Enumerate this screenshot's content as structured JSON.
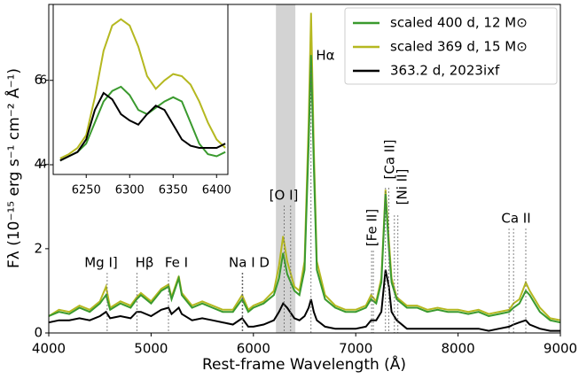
{
  "chart_data": [
    {
      "type": "line",
      "x_label": "Rest-frame Wavelength (Å)",
      "y_label": "Fλ (10⁻¹⁵ erg s⁻¹ cm⁻² Å⁻¹)",
      "xlim": [
        4000,
        9000
      ],
      "ylim": [
        0,
        7.8
      ],
      "xticks": [
        4000,
        5000,
        6000,
        7000,
        8000,
        9000
      ],
      "yticks": [
        0,
        2,
        4,
        6
      ],
      "legend": "upper right",
      "shaded_band": [
        6220,
        6410
      ],
      "x": [
        4000,
        4100,
        4200,
        4300,
        4400,
        4500,
        4560,
        4600,
        4700,
        4800,
        4860,
        4900,
        5000,
        5100,
        5170,
        5200,
        5270,
        5300,
        5400,
        5500,
        5600,
        5700,
        5800,
        5890,
        5950,
        6000,
        6100,
        6200,
        6250,
        6290,
        6330,
        6400,
        6450,
        6500,
        6540,
        6563,
        6590,
        6620,
        6700,
        6800,
        6900,
        7000,
        7100,
        7150,
        7200,
        7250,
        7291,
        7324,
        7350,
        7400,
        7500,
        7600,
        7700,
        7800,
        7900,
        8000,
        8100,
        8200,
        8300,
        8400,
        8500,
        8542,
        8600,
        8662,
        8700,
        8800,
        8900,
        9000
      ],
      "series": [
        {
          "name": "scaled 400 d, 12 M⊙",
          "color": "#3a9a2e",
          "values": [
            0.4,
            0.5,
            0.45,
            0.6,
            0.5,
            0.7,
            0.9,
            0.55,
            0.7,
            0.6,
            0.8,
            0.9,
            0.7,
            1.0,
            1.1,
            0.8,
            1.3,
            0.9,
            0.6,
            0.7,
            0.6,
            0.5,
            0.5,
            0.8,
            0.5,
            0.6,
            0.7,
            0.9,
            1.3,
            1.9,
            1.4,
            1.0,
            0.9,
            1.5,
            4.5,
            6.6,
            4.0,
            1.5,
            0.8,
            0.6,
            0.5,
            0.5,
            0.6,
            0.8,
            0.7,
            1.2,
            3.3,
            2.0,
            1.2,
            0.8,
            0.6,
            0.6,
            0.5,
            0.55,
            0.5,
            0.5,
            0.45,
            0.5,
            0.4,
            0.45,
            0.5,
            0.6,
            0.7,
            1.0,
            0.9,
            0.5,
            0.3,
            0.25
          ]
        },
        {
          "name": "scaled 369 d, 15 M⊙",
          "color": "#b5b820",
          "values": [
            0.4,
            0.55,
            0.5,
            0.65,
            0.55,
            0.75,
            1.1,
            0.6,
            0.75,
            0.65,
            0.85,
            0.95,
            0.75,
            1.05,
            1.15,
            0.85,
            1.35,
            0.95,
            0.65,
            0.75,
            0.65,
            0.55,
            0.55,
            0.9,
            0.55,
            0.65,
            0.75,
            1.0,
            1.6,
            2.3,
            1.7,
            1.1,
            1.0,
            1.7,
            5.0,
            7.6,
            4.4,
            1.7,
            0.9,
            0.65,
            0.55,
            0.55,
            0.65,
            0.9,
            0.75,
            1.3,
            3.4,
            2.2,
            1.3,
            0.85,
            0.65,
            0.65,
            0.55,
            0.6,
            0.55,
            0.55,
            0.5,
            0.55,
            0.45,
            0.5,
            0.55,
            0.7,
            0.8,
            1.2,
            1.0,
            0.6,
            0.35,
            0.3
          ]
        },
        {
          "name": "363.2 d, 2023ixf",
          "color": "#000000",
          "values": [
            0.25,
            0.3,
            0.3,
            0.35,
            0.3,
            0.4,
            0.5,
            0.35,
            0.4,
            0.35,
            0.5,
            0.5,
            0.4,
            0.55,
            0.6,
            0.45,
            0.6,
            0.45,
            0.3,
            0.35,
            0.3,
            0.25,
            0.2,
            0.35,
            0.15,
            0.15,
            0.2,
            0.3,
            0.5,
            0.7,
            0.6,
            0.35,
            0.3,
            0.4,
            0.6,
            0.8,
            0.5,
            0.3,
            0.15,
            0.1,
            0.1,
            0.1,
            0.15,
            0.3,
            0.3,
            0.5,
            1.5,
            1.1,
            0.5,
            0.3,
            0.1,
            0.1,
            0.1,
            0.1,
            0.1,
            0.1,
            0.1,
            0.1,
            0.05,
            0.1,
            0.15,
            0.2,
            0.25,
            0.3,
            0.2,
            0.1,
            0.05,
            0.05
          ]
        }
      ],
      "annotations": [
        {
          "text": "Mg I]",
          "lines": [
            4571
          ]
        },
        {
          "text": "Hβ",
          "lines": [
            4861
          ]
        },
        {
          "text": "Fe I",
          "lines": [
            5170
          ]
        },
        {
          "text": "Na I D",
          "lines": [
            5890,
            5896
          ]
        },
        {
          "text": "[O I]",
          "lines": [
            6300,
            6364
          ]
        },
        {
          "text": "Hα",
          "lines": [
            6563
          ]
        },
        {
          "text": "[Fe II]",
          "lines": [
            7155,
            7172
          ]
        },
        {
          "text": "[Ca II]",
          "lines": [
            7291,
            7324
          ]
        },
        {
          "text": "[Ni II]",
          "lines": [
            7378,
            7412
          ]
        },
        {
          "text": "Ca II",
          "lines": [
            8498,
            8542,
            8662
          ]
        }
      ]
    },
    {
      "type": "line",
      "xlim": [
        6212,
        6413
      ],
      "ylim": [
        3.77,
        7.8
      ],
      "xticks": [
        6250,
        6300,
        6350,
        6400
      ],
      "yticks": [
        4,
        6
      ],
      "x": [
        6220,
        6230,
        6240,
        6250,
        6260,
        6270,
        6280,
        6290,
        6300,
        6310,
        6320,
        6330,
        6340,
        6350,
        6360,
        6370,
        6380,
        6390,
        6400,
        6410
      ],
      "series": [
        {
          "color": "#b5b820",
          "values": [
            4.15,
            4.25,
            4.4,
            4.7,
            5.6,
            6.7,
            7.3,
            7.45,
            7.3,
            6.8,
            6.1,
            5.8,
            6.0,
            6.15,
            6.1,
            5.9,
            5.5,
            5.0,
            4.6,
            4.4
          ]
        },
        {
          "color": "#3a9a2e",
          "values": [
            4.1,
            4.2,
            4.3,
            4.5,
            5.0,
            5.5,
            5.75,
            5.85,
            5.65,
            5.3,
            5.2,
            5.35,
            5.5,
            5.6,
            5.5,
            5.0,
            4.5,
            4.25,
            4.2,
            4.3
          ]
        },
        {
          "color": "#000000",
          "values": [
            4.1,
            4.2,
            4.3,
            4.6,
            5.3,
            5.7,
            5.55,
            5.2,
            5.05,
            4.95,
            5.2,
            5.4,
            5.3,
            4.95,
            4.6,
            4.45,
            4.4,
            4.4,
            4.4,
            4.5
          ]
        }
      ]
    }
  ]
}
